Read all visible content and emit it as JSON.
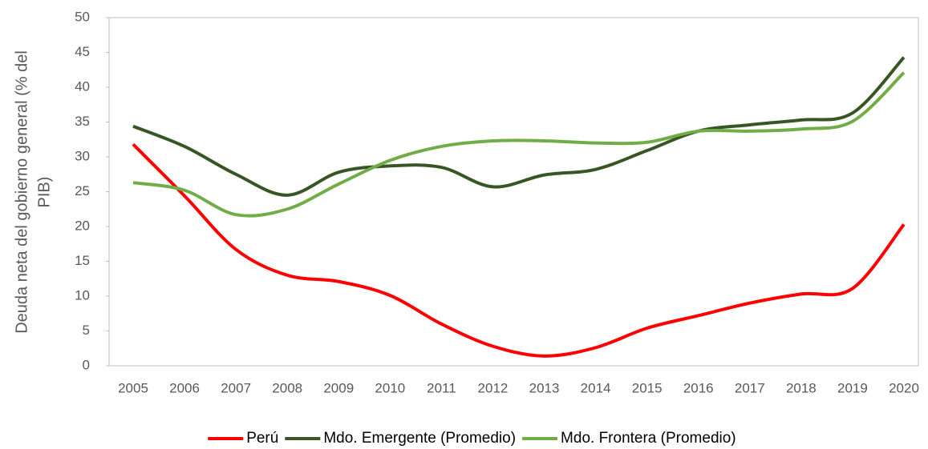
{
  "chart_data": {
    "type": "line",
    "ylabel": [
      "Deuda neta del gobierno general (% del",
      "PIB)"
    ],
    "categories": [
      "2005",
      "2006",
      "2007",
      "2008",
      "2009",
      "2010",
      "2011",
      "2012",
      "2013",
      "2014",
      "2015",
      "2016",
      "2017",
      "2018",
      "2019",
      "2020"
    ],
    "series": [
      {
        "name": "Perú",
        "color": "#ff0000",
        "values": [
          31.8,
          24.4,
          16.7,
          13.0,
          12.1,
          10.1,
          6.0,
          2.8,
          1.4,
          2.6,
          5.4,
          7.2,
          9.0,
          10.3,
          11.1,
          20.3
        ]
      },
      {
        "name": "Mdo. Emergente (Promedio)",
        "color": "#375623",
        "values": [
          34.4,
          31.5,
          27.5,
          24.5,
          27.8,
          28.7,
          28.5,
          25.7,
          27.4,
          28.2,
          30.9,
          33.7,
          34.6,
          35.3,
          36.3,
          44.3
        ]
      },
      {
        "name": "Mdo. Frontera (Promedio)",
        "color": "#70ad47",
        "values": [
          26.3,
          25.2,
          21.7,
          22.5,
          26.1,
          29.5,
          31.5,
          32.3,
          32.3,
          32.0,
          32.1,
          33.7,
          33.7,
          34.0,
          35.1,
          42.1
        ]
      }
    ],
    "ylim": [
      0,
      50
    ],
    "yticks": [
      0,
      5,
      10,
      15,
      20,
      25,
      30,
      35,
      40,
      45,
      50
    ],
    "legend": "bottom",
    "grid": false
  }
}
